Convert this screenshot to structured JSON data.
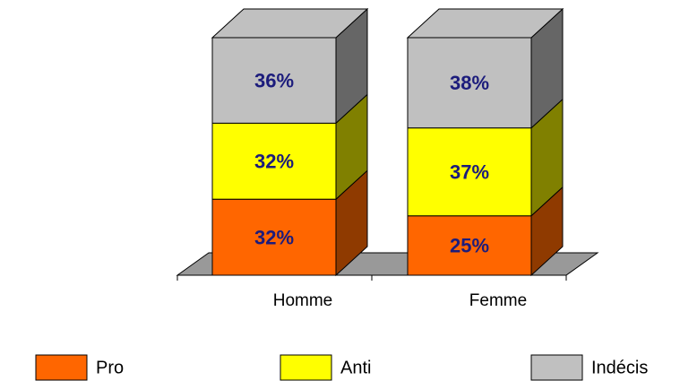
{
  "chart_data": {
    "type": "bar3d_stacked",
    "categories": [
      "Homme",
      "Femme"
    ],
    "ylim": [
      0,
      100
    ],
    "series": [
      {
        "name": "Pro",
        "color": "#ff6600",
        "side_color": "#8f3a00",
        "values": [
          32,
          25
        ],
        "value_labels": [
          "32%",
          "25%"
        ]
      },
      {
        "name": "Anti",
        "color": "#ffff00",
        "side_color": "#808000",
        "values": [
          32,
          37
        ],
        "value_labels": [
          "32%",
          "37%"
        ]
      },
      {
        "name": "Indécis",
        "color": "#c0c0c0",
        "side_color": "#666666",
        "values": [
          36,
          38
        ],
        "value_labels": [
          "36%",
          "38%"
        ]
      }
    ],
    "legend": "bottom"
  }
}
